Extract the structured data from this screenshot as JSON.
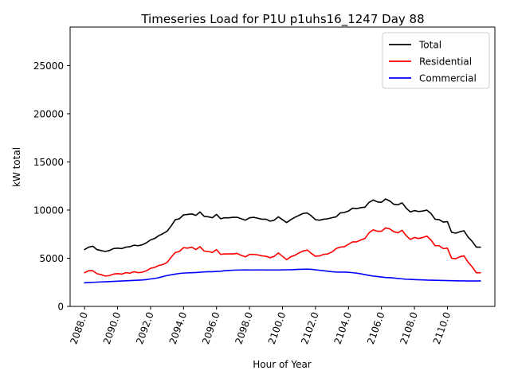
{
  "chart_data": {
    "type": "line",
    "title": "Timeseries Load for P1U p1uhs16_1247  Day 88",
    "xlabel": "Hour of Year",
    "ylabel": "kW total",
    "xlim": [
      2087.125,
      2112.875
    ],
    "ylim": [
      0,
      29000
    ],
    "xticks": [
      2088,
      2090,
      2092,
      2094,
      2096,
      2098,
      2100,
      2102,
      2104,
      2106,
      2108,
      2110
    ],
    "xtick_labels": [
      "2088.0",
      "2090.0",
      "2092.0",
      "2094.0",
      "2096.0",
      "2098.0",
      "2100.0",
      "2102.0",
      "2104.0",
      "2106.0",
      "2108.0",
      "2110.0"
    ],
    "yticks": [
      0,
      5000,
      10000,
      15000,
      20000,
      25000
    ],
    "ytick_labels": [
      "0",
      "5000",
      "10000",
      "15000",
      "20000",
      "25000"
    ],
    "legend_position": "top-right",
    "x_start": 2088,
    "x_step": 0.25,
    "series": [
      {
        "name": "Total",
        "color": "#000000",
        "values": [
          5900,
          6150,
          6250,
          5900,
          5800,
          5700,
          5800,
          6000,
          6050,
          6000,
          6150,
          6200,
          6350,
          6300,
          6400,
          6600,
          6900,
          7050,
          7350,
          7550,
          7800,
          8350,
          9000,
          9100,
          9500,
          9550,
          9600,
          9450,
          9800,
          9350,
          9300,
          9200,
          9550,
          9100,
          9200,
          9200,
          9250,
          9250,
          9100,
          8950,
          9200,
          9250,
          9150,
          9050,
          9050,
          8850,
          8950,
          9300,
          9000,
          8700,
          9000,
          9250,
          9450,
          9650,
          9700,
          9400,
          9000,
          8950,
          9050,
          9100,
          9200,
          9300,
          9700,
          9750,
          9900,
          10200,
          10150,
          10250,
          10300,
          10800,
          11050,
          10850,
          10800,
          11150,
          10950,
          10600,
          10550,
          10750,
          10200,
          9800,
          9950,
          9850,
          9900,
          10000,
          9650,
          9050,
          9000,
          8750,
          8800,
          7700,
          7600,
          7750,
          7850,
          7200,
          6750,
          6150,
          6150
        ]
      },
      {
        "name": "Residential",
        "color": "#ff0000",
        "values": [
          3500,
          3700,
          3700,
          3400,
          3300,
          3150,
          3200,
          3350,
          3400,
          3350,
          3500,
          3450,
          3600,
          3500,
          3550,
          3700,
          3950,
          4050,
          4250,
          4350,
          4550,
          5100,
          5600,
          5700,
          6100,
          6050,
          6150,
          5900,
          6200,
          5750,
          5700,
          5600,
          5900,
          5400,
          5450,
          5450,
          5450,
          5500,
          5300,
          5150,
          5400,
          5400,
          5350,
          5250,
          5200,
          5050,
          5200,
          5550,
          5200,
          4850,
          5150,
          5300,
          5550,
          5750,
          5850,
          5500,
          5200,
          5250,
          5400,
          5450,
          5650,
          6000,
          6150,
          6200,
          6450,
          6700,
          6700,
          6900,
          7050,
          7650,
          7950,
          7800,
          7800,
          8150,
          8050,
          7750,
          7650,
          7900,
          7350,
          6950,
          7150,
          7050,
          7150,
          7300,
          6900,
          6300,
          6300,
          6000,
          6050,
          5000,
          4950,
          5150,
          5250,
          4600,
          4100,
          3500,
          3500
        ]
      },
      {
        "name": "Commercial",
        "color": "#0000ff",
        "values": [
          2450,
          2470,
          2500,
          2520,
          2540,
          2560,
          2580,
          2600,
          2620,
          2640,
          2660,
          2680,
          2700,
          2720,
          2740,
          2780,
          2850,
          2900,
          2980,
          3100,
          3200,
          3280,
          3350,
          3420,
          3460,
          3480,
          3500,
          3520,
          3550,
          3580,
          3600,
          3600,
          3630,
          3650,
          3700,
          3730,
          3760,
          3770,
          3780,
          3790,
          3780,
          3780,
          3790,
          3790,
          3780,
          3780,
          3780,
          3780,
          3790,
          3800,
          3810,
          3830,
          3850,
          3860,
          3870,
          3850,
          3800,
          3750,
          3700,
          3650,
          3600,
          3570,
          3560,
          3560,
          3540,
          3500,
          3450,
          3380,
          3300,
          3220,
          3150,
          3100,
          3050,
          3000,
          2980,
          2950,
          2900,
          2860,
          2820,
          2800,
          2780,
          2760,
          2750,
          2730,
          2720,
          2710,
          2700,
          2690,
          2680,
          2670,
          2660,
          2650,
          2650,
          2640,
          2640,
          2640,
          2650
        ]
      }
    ]
  }
}
